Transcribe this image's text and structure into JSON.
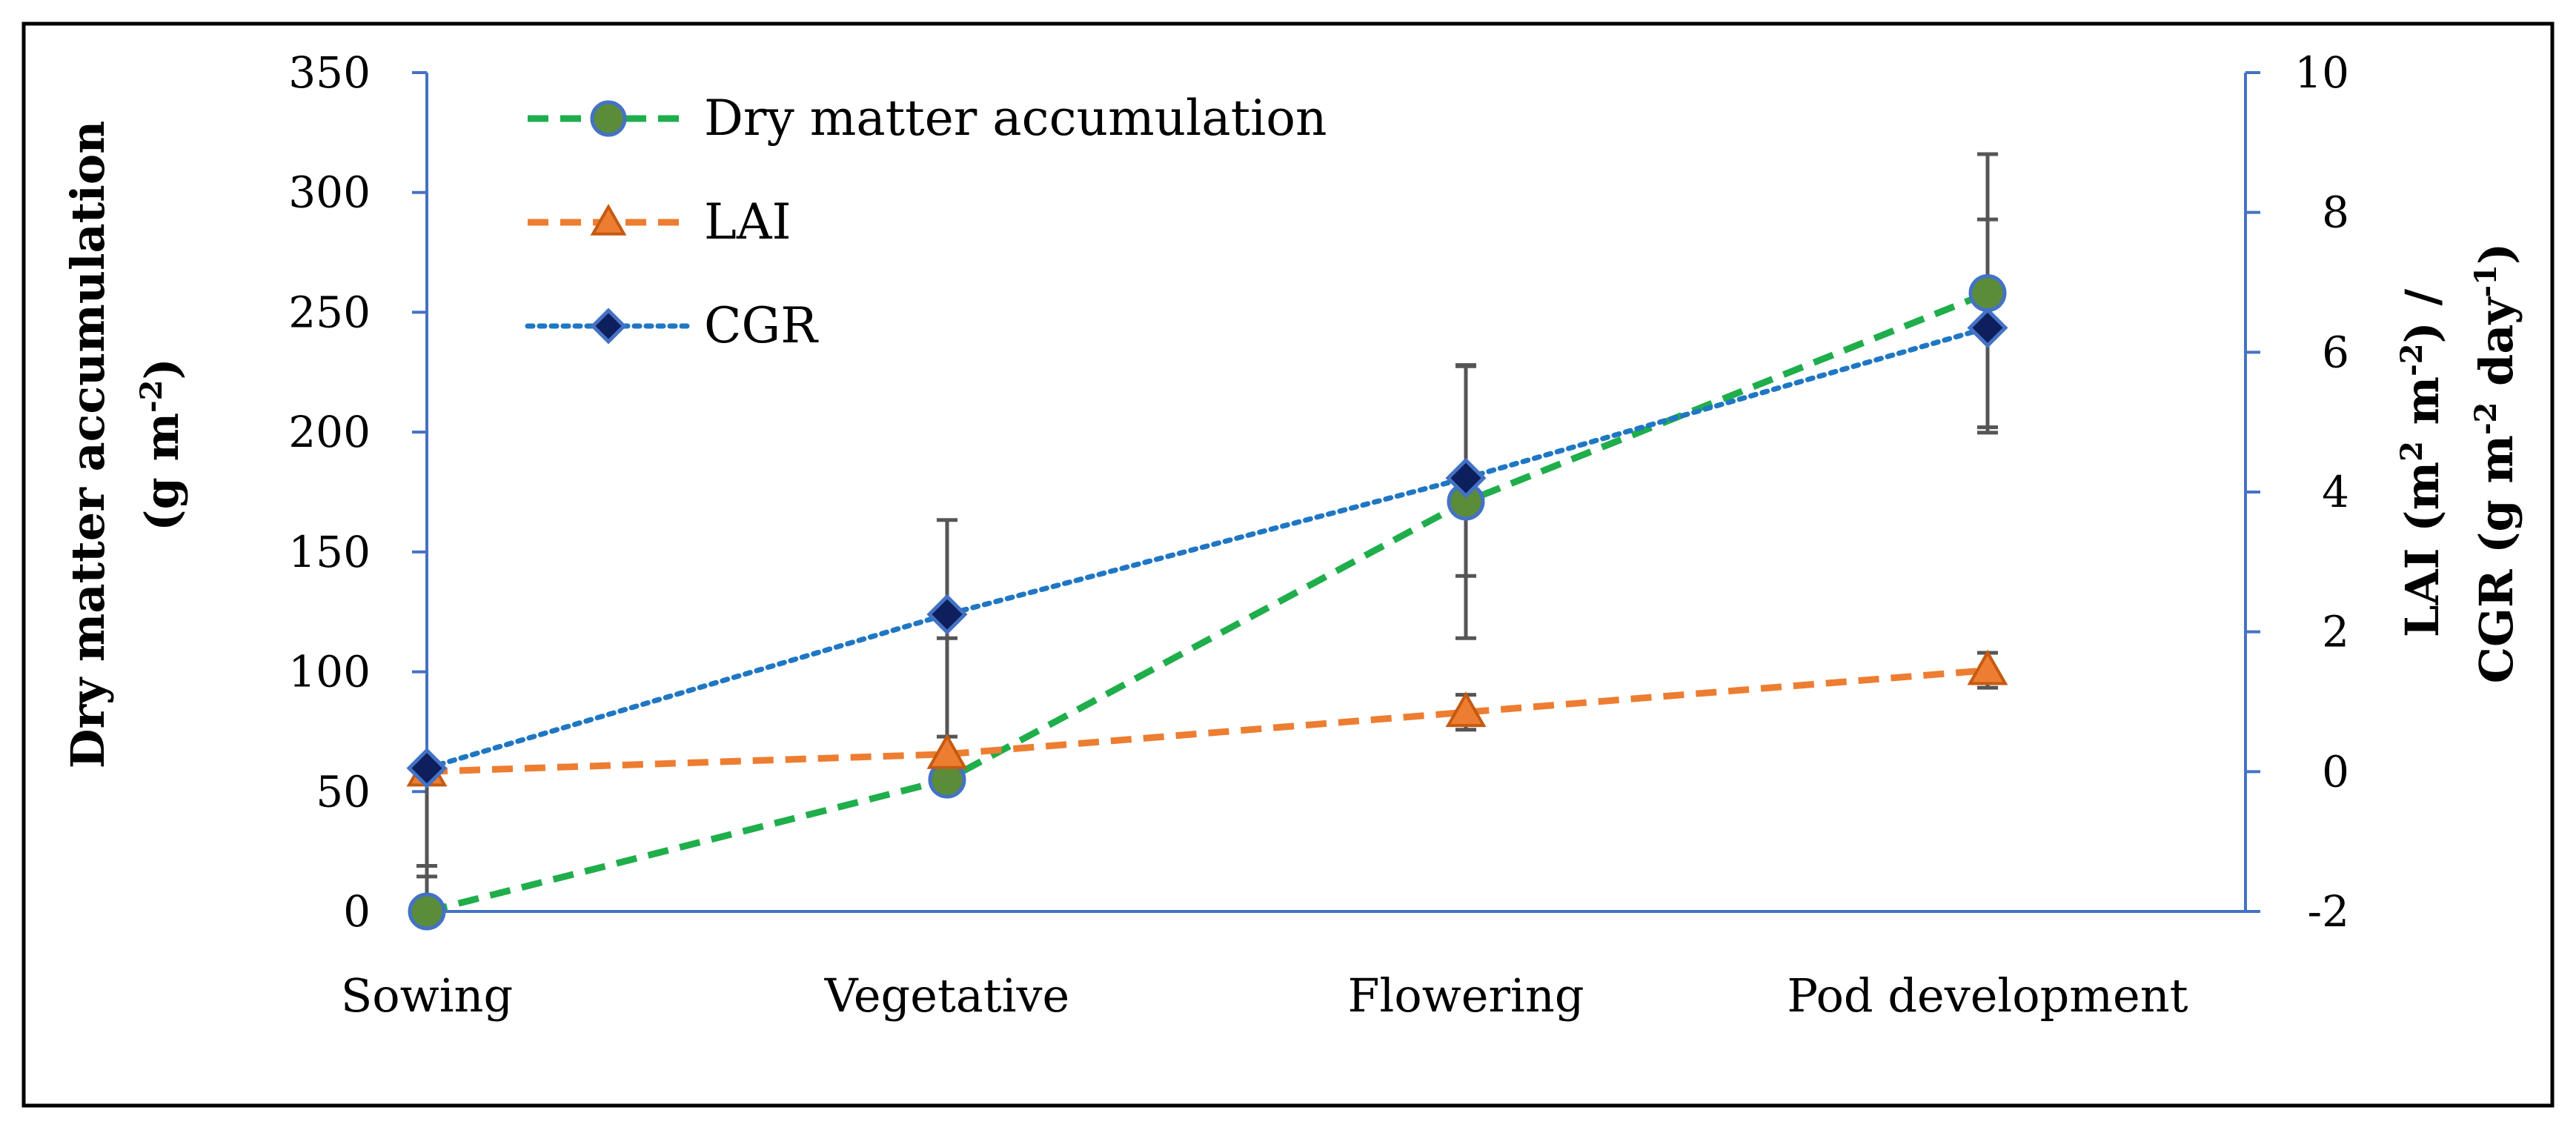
{
  "chart_data": {
    "type": "line",
    "title": "",
    "categories": [
      "Sowing",
      "Vegetative",
      "Flowering",
      "Pod development"
    ],
    "y_left": {
      "label_line1": "Dry matter accumulation",
      "label_line2_prefix": "(g m",
      "label_line2_sup": "-2",
      "label_line2_suffix": ")",
      "range": [
        0,
        350
      ],
      "ticks": [
        "0",
        "50",
        "100",
        "150",
        "200",
        "250",
        "300",
        "350"
      ]
    },
    "y_right": {
      "label_line1_prefix": "LAI (m",
      "label_line1_sup1": "2",
      "label_line1_mid": " m",
      "label_line1_sup2": "-2",
      "label_line1_suffix": ") /",
      "label_line2_prefix": "CGR (g m",
      "label_line2_sup1": "-2",
      "label_line2_mid": " day",
      "label_line2_sup2": "-1",
      "label_line2_suffix": ")",
      "range": [
        -2,
        10
      ],
      "ticks": [
        "-2",
        "0",
        "2",
        "4",
        "6",
        "8",
        "10"
      ]
    },
    "series": [
      {
        "name": "Dry matter accumulation",
        "axis": "left",
        "values": [
          0,
          55,
          171,
          258
        ],
        "error_low": [
          0,
          55,
          114,
          202
        ],
        "error_high": [
          19,
          114,
          228,
          316
        ],
        "color": "#1fae4b",
        "marker_fill": "#5b8c3a",
        "marker_stroke": "#4472c4",
        "marker": "circle",
        "dash": "dashed"
      },
      {
        "name": "LAI",
        "axis": "right",
        "values": [
          0.0,
          0.25,
          0.85,
          1.45
        ],
        "error_low": [
          0.0,
          0.0,
          0.6,
          1.2
        ],
        "error_high": [
          0.0,
          0.5,
          1.1,
          1.7
        ],
        "color": "#ed7d31",
        "marker_fill": "#ed7d31",
        "marker_stroke": "#c55a11",
        "marker": "triangle",
        "dash": "dashed"
      },
      {
        "name": "CGR",
        "axis": "right",
        "values": [
          0.05,
          2.25,
          4.2,
          6.35
        ],
        "error_low": [
          -1.5,
          0.2,
          2.8,
          4.85
        ],
        "error_high": [
          0.05,
          3.6,
          5.8,
          7.9
        ],
        "color": "#1f77c4",
        "marker_fill": "#0d1f5c",
        "marker_stroke": "#4472c4",
        "marker": "diamond",
        "dash": "dotted"
      }
    ],
    "legend_position": "top-left"
  }
}
